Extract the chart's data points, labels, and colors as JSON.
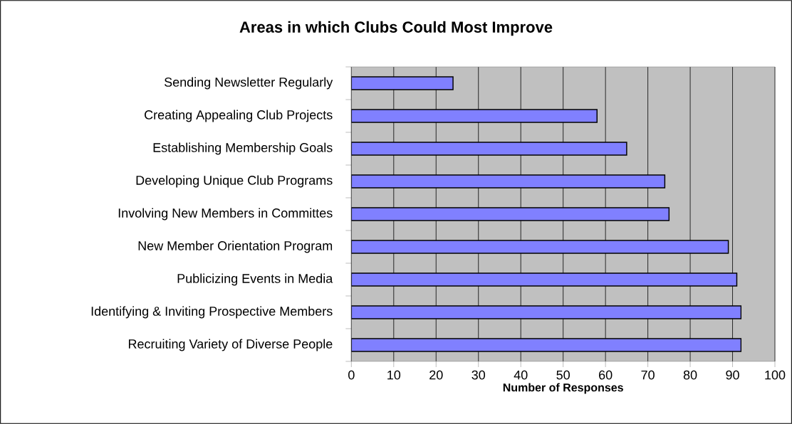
{
  "chart_data": {
    "type": "bar",
    "orientation": "horizontal",
    "title": "Areas in which Clubs Could Most Improve",
    "xlabel": "Number of Responses",
    "categories": [
      "Sending Newsletter Regularly",
      "Creating Appealing Club Projects",
      "Establishing Membership Goals",
      "Developing Unique Club Programs",
      "Involving New Members in Committes",
      "New Member Orientation Program",
      "Publicizing Events in Media",
      "Identifying & Inviting Prospective Members",
      "Recruiting Variety of Diverse People"
    ],
    "values": [
      24,
      58,
      65,
      74,
      75,
      89,
      91,
      92,
      92
    ],
    "color": "#8080ff",
    "xlim": [
      0,
      100
    ],
    "xticks": [
      0,
      10,
      20,
      30,
      40,
      50,
      60,
      70,
      80,
      90,
      100
    ],
    "grid": "x"
  }
}
